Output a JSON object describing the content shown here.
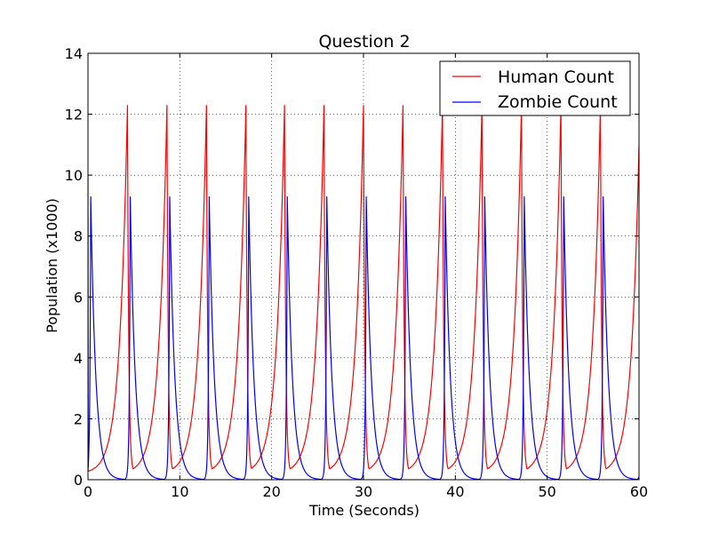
{
  "chart_data": {
    "type": "line",
    "title": "Question 2",
    "xlabel": "Time (Seconds)",
    "ylabel": "Population (x1000)",
    "xlim": [
      0,
      60
    ],
    "ylim": [
      0,
      14
    ],
    "xticks": [
      0,
      10,
      20,
      30,
      40,
      50,
      60
    ],
    "yticks": [
      0,
      2,
      4,
      6,
      8,
      10,
      12,
      14
    ],
    "grid": true,
    "legend_position": "top-right",
    "series": [
      {
        "name": "Human Count",
        "color": "#ff0000",
        "peak_times": [
          4.3,
          8.6,
          12.9,
          17.2,
          21.4,
          25.7,
          30.0,
          34.3,
          38.6,
          42.9,
          47.2,
          51.5,
          55.8
        ],
        "peak_value": 12.3,
        "trough_value": 0.2,
        "end_value": 12.2
      },
      {
        "name": "Zombie Count",
        "color": "#0000ff",
        "peak_times": [
          0.3,
          4.6,
          8.9,
          13.2,
          17.5,
          21.7,
          26.0,
          30.3,
          34.6,
          38.9,
          43.2,
          47.5,
          51.8,
          56.1
        ],
        "peak_value": 9.3,
        "trough_value": 0.0,
        "start_value": 8.6
      }
    ]
  }
}
